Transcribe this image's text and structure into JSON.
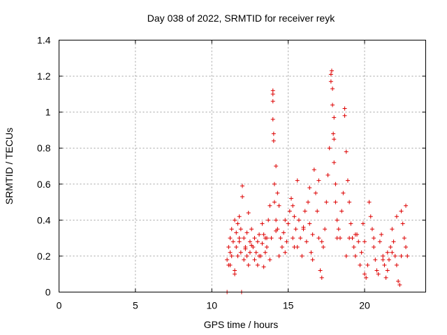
{
  "chart_data": {
    "type": "scatter",
    "title": "Day 038 of 2022, SRMTID for receiver reyk",
    "xlabel": "GPS time / hours",
    "ylabel": "SRMTID / TECUs",
    "xlim": [
      0,
      24
    ],
    "ylim": [
      0,
      1.4
    ],
    "xticks": [
      0,
      5,
      10,
      15,
      20
    ],
    "xtick_labels": [
      "0",
      "5",
      "10",
      "15",
      "20"
    ],
    "yticks": [
      0,
      0.2,
      0.4,
      0.6,
      0.8,
      1.0,
      1.2,
      1.4
    ],
    "ytick_labels": [
      "0",
      "0.2",
      "0.4",
      "0.6",
      "0.8",
      "1",
      "1.2",
      "1.4"
    ],
    "grid": true,
    "marker": "+",
    "color": "#dd0000",
    "series": [
      {
        "name": "SRMTID",
        "x": [
          11.0,
          11.0,
          11.1,
          11.1,
          11.2,
          11.2,
          11.3,
          11.3,
          11.4,
          11.5,
          11.5,
          11.6,
          11.6,
          11.7,
          11.7,
          11.8,
          11.8,
          11.9,
          11.9,
          11.95,
          12.0,
          12.0,
          12.1,
          12.1,
          12.2,
          12.3,
          12.3,
          12.4,
          12.5,
          12.5,
          12.6,
          12.7,
          12.8,
          12.8,
          12.9,
          13.0,
          13.0,
          13.1,
          13.2,
          13.3,
          13.3,
          13.4,
          13.5,
          13.5,
          13.6,
          13.7,
          13.8,
          13.8,
          13.9,
          14.0,
          14.0,
          14.0,
          14.0,
          14.05,
          14.05,
          14.1,
          14.1,
          14.2,
          14.2,
          14.3,
          14.3,
          14.4,
          14.4,
          14.5,
          14.6,
          14.7,
          14.8,
          14.9,
          15.0,
          15.1,
          15.2,
          15.3,
          15.3,
          15.4,
          15.5,
          15.6,
          15.7,
          15.8,
          15.9,
          16.0,
          16.1,
          16.2,
          16.3,
          16.4,
          16.5,
          16.6,
          16.7,
          16.8,
          16.9,
          17.0,
          17.1,
          17.2,
          17.3,
          17.4,
          17.5,
          17.6,
          17.7,
          17.8,
          17.8,
          17.85,
          17.9,
          17.9,
          17.95,
          18.0,
          18.0,
          18.0,
          18.1,
          18.1,
          18.2,
          18.3,
          18.4,
          18.5,
          18.6,
          18.7,
          18.7,
          18.8,
          18.9,
          19.0,
          19.1,
          19.2,
          19.3,
          19.4,
          19.5,
          19.6,
          19.7,
          19.8,
          19.9,
          20.0,
          20.1,
          20.2,
          20.3,
          20.4,
          20.5,
          20.6,
          20.7,
          20.8,
          20.9,
          21.0,
          21.1,
          21.2,
          21.3,
          21.4,
          21.5,
          21.6,
          21.7,
          21.8,
          21.9,
          22.0,
          22.1,
          22.2,
          22.3,
          22.4,
          22.5,
          22.6,
          22.7,
          22.8,
          11.2,
          11.5,
          11.8,
          12.2,
          12.6,
          13.1,
          13.6,
          14.2,
          14.8,
          15.4,
          16.0,
          16.6,
          17.2,
          18.2,
          18.8,
          19.4,
          20.0,
          20.6,
          21.2,
          21.8,
          22.4,
          22.7,
          12.4,
          13.4,
          15.6,
          16.4,
          17.0,
          19.0,
          21.5,
          22.1
        ],
        "y": [
          0.0,
          0.18,
          0.15,
          0.25,
          0.22,
          0.3,
          0.2,
          0.35,
          0.28,
          0.12,
          0.4,
          0.25,
          0.33,
          0.2,
          0.38,
          0.28,
          0.42,
          0.22,
          0.35,
          0.0,
          0.59,
          0.53,
          0.18,
          0.3,
          0.25,
          0.2,
          0.33,
          0.15,
          0.28,
          0.22,
          0.35,
          0.25,
          0.18,
          0.3,
          0.22,
          0.28,
          0.15,
          0.32,
          0.2,
          0.27,
          0.38,
          0.14,
          0.3,
          0.22,
          0.25,
          0.4,
          0.18,
          0.48,
          0.3,
          1.12,
          1.1,
          1.06,
          0.96,
          0.88,
          0.84,
          0.6,
          0.5,
          0.4,
          0.7,
          0.55,
          0.35,
          0.48,
          0.2,
          0.3,
          0.25,
          0.33,
          0.22,
          0.28,
          0.38,
          0.45,
          0.52,
          0.48,
          0.3,
          0.42,
          0.35,
          0.25,
          0.4,
          0.3,
          0.2,
          0.35,
          0.45,
          0.28,
          0.5,
          0.38,
          0.22,
          0.32,
          0.68,
          0.55,
          0.45,
          0.3,
          0.12,
          0.08,
          0.25,
          0.35,
          0.5,
          0.65,
          0.8,
          1.21,
          1.17,
          1.23,
          1.13,
          1.04,
          0.88,
          0.97,
          0.85,
          0.72,
          0.6,
          0.5,
          0.4,
          0.35,
          0.3,
          0.45,
          0.55,
          1.02,
          0.98,
          0.78,
          0.62,
          0.5,
          0.38,
          0.3,
          0.25,
          0.2,
          0.32,
          0.28,
          0.15,
          0.22,
          0.38,
          0.1,
          0.08,
          0.15,
          0.5,
          0.42,
          0.35,
          0.25,
          0.18,
          0.12,
          0.1,
          0.28,
          0.32,
          0.2,
          0.15,
          0.08,
          0.12,
          0.18,
          0.25,
          0.35,
          0.28,
          0.2,
          0.15,
          0.06,
          0.04,
          0.45,
          0.38,
          0.3,
          0.25,
          0.2,
          0.15,
          0.1,
          0.3,
          0.24,
          0.26,
          0.2,
          0.3,
          0.34,
          0.4,
          0.25,
          0.36,
          0.18,
          0.28,
          0.3,
          0.2,
          0.32,
          0.28,
          0.3,
          0.18,
          0.22,
          0.2,
          0.48,
          0.44,
          0.32,
          0.62,
          0.58,
          0.62,
          0.3,
          0.22,
          0.42
        ]
      }
    ]
  }
}
